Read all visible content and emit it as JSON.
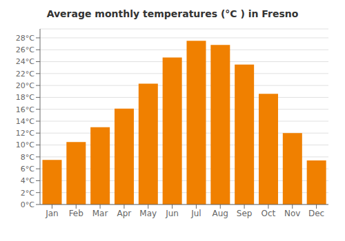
{
  "chart_data": {
    "type": "bar",
    "title": "Average monthly temperatures (°C ) in Fresno",
    "categories": [
      "Jan",
      "Feb",
      "Mar",
      "Apr",
      "May",
      "Jun",
      "Jul",
      "Aug",
      "Sep",
      "Oct",
      "Nov",
      "Dec"
    ],
    "values": [
      7.5,
      10.5,
      13.0,
      16.1,
      20.3,
      24.7,
      27.5,
      26.8,
      23.5,
      18.6,
      12.0,
      7.4
    ],
    "color": "#F08000",
    "ylim": [
      0,
      29.5
    ],
    "yticks": [
      {
        "value": 0,
        "label": "0°C"
      },
      {
        "value": 2,
        "label": "2°C"
      },
      {
        "value": 4,
        "label": "4°C"
      },
      {
        "value": 6,
        "label": "6°C"
      },
      {
        "value": 8,
        "label": "8°C"
      },
      {
        "value": 10,
        "label": "10°C"
      },
      {
        "value": 12,
        "label": "12°C"
      },
      {
        "value": 14,
        "label": "14°C"
      },
      {
        "value": 16,
        "label": "16°C"
      },
      {
        "value": 18,
        "label": "18°C"
      },
      {
        "value": 20,
        "label": "20°C"
      },
      {
        "value": 22,
        "label": "22°C"
      },
      {
        "value": 24,
        "label": "24°C"
      },
      {
        "value": 26,
        "label": "26°C"
      },
      {
        "value": 28,
        "label": "28°C"
      }
    ],
    "grid": true
  }
}
